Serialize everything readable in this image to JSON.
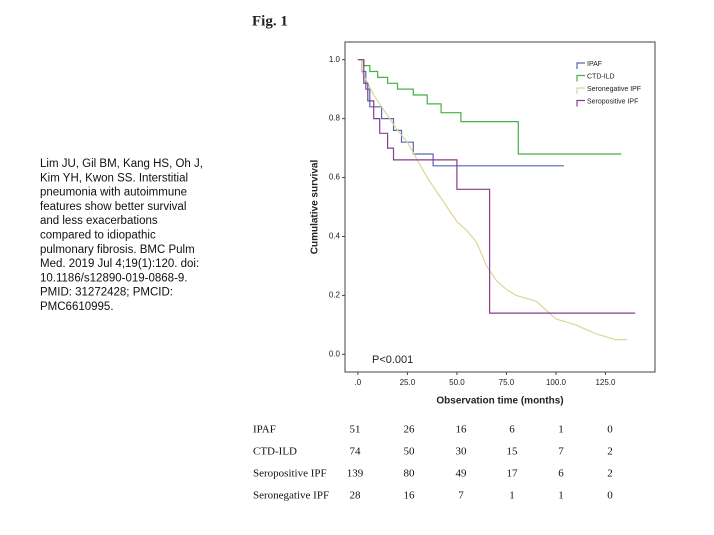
{
  "figure_label": "Fig. 1",
  "citation": [
    "Lim JU, Gil BM, Kang HS, Oh J,",
    "Kim YH, Kwon SS. Interstitial",
    "pneumonia with autoimmune",
    "features show better survival",
    "and less exacerbations",
    "compared to idiopathic",
    "pulmonary fibrosis. BMC Pulm",
    "Med. 2019 Jul 4;19(1):120. doi:",
    "10.1186/s12890-019-0868-9.",
    "PMID: 31272428; PMCID:",
    "PMC6610995."
  ],
  "chart_data": {
    "type": "line",
    "xlabel": "Observation time (months)",
    "ylabel": "Cumulative survival",
    "annotation": "P<0.001",
    "xlim": [
      -6.5,
      150
    ],
    "ylim": [
      -0.06,
      1.06
    ],
    "xticks": [
      {
        "value": 0,
        "label": ".0"
      },
      {
        "value": 25,
        "label": "25.0"
      },
      {
        "value": 50,
        "label": "50.0"
      },
      {
        "value": 75,
        "label": "75.0"
      },
      {
        "value": 100,
        "label": "100.0"
      },
      {
        "value": 125,
        "label": "125.0"
      }
    ],
    "yticks": [
      {
        "value": 0,
        "label": "0.0"
      },
      0.2,
      0.4,
      0.6,
      0.8,
      {
        "value": 1,
        "label": "1.0"
      }
    ],
    "series": [
      {
        "name": "IPAF",
        "color": "#5468b0",
        "x": [
          0,
          2,
          2,
          4,
          4,
          6,
          6,
          12,
          12,
          18,
          18,
          22,
          22,
          28,
          28,
          38,
          38,
          104
        ],
        "values": [
          1,
          1,
          0.96,
          0.96,
          0.9,
          0.9,
          0.84,
          0.84,
          0.8,
          0.8,
          0.76,
          0.76,
          0.72,
          0.72,
          0.68,
          0.68,
          0.64,
          0.64
        ]
      },
      {
        "name": "CTD-ILD",
        "color": "#45b045",
        "x": [
          0,
          3,
          3,
          6,
          6,
          10,
          10,
          15,
          15,
          20,
          20,
          28,
          28,
          35,
          35,
          42,
          42,
          52,
          52,
          81,
          81,
          133
        ],
        "values": [
          1,
          1,
          0.98,
          0.98,
          0.96,
          0.96,
          0.94,
          0.94,
          0.92,
          0.92,
          0.9,
          0.9,
          0.88,
          0.88,
          0.85,
          0.85,
          0.82,
          0.82,
          0.79,
          0.79,
          0.68,
          0.68
        ]
      },
      {
        "name": "Seronegative IPF",
        "color": "#ddd59a",
        "x": [
          0,
          2,
          2,
          5,
          8,
          12,
          16,
          20,
          25,
          30,
          35,
          40,
          45,
          50,
          55,
          60,
          65,
          70,
          75,
          80,
          90,
          100,
          110,
          120,
          130,
          136
        ],
        "values": [
          1,
          1,
          0.96,
          0.92,
          0.88,
          0.84,
          0.8,
          0.76,
          0.72,
          0.66,
          0.6,
          0.55,
          0.5,
          0.45,
          0.42,
          0.38,
          0.3,
          0.25,
          0.22,
          0.2,
          0.18,
          0.12,
          0.1,
          0.07,
          0.05,
          0.05
        ]
      },
      {
        "name": "Seropositive IPF",
        "color": "#8a3c8c",
        "x": [
          0,
          3,
          3,
          5,
          5,
          8,
          8,
          11,
          11,
          15,
          15,
          18,
          18,
          50,
          50,
          66.5,
          66.5,
          140
        ],
        "values": [
          1,
          1,
          0.92,
          0.92,
          0.86,
          0.86,
          0.8,
          0.8,
          0.75,
          0.75,
          0.7,
          0.7,
          0.66,
          0.66,
          0.56,
          0.56,
          0.14,
          0.14
        ]
      }
    ]
  },
  "risk_table": {
    "rows": [
      {
        "label": "IPAF",
        "counts": [
          51,
          26,
          16,
          6,
          1,
          0
        ]
      },
      {
        "label": "CTD-ILD",
        "counts": [
          74,
          50,
          30,
          15,
          7,
          2
        ]
      },
      {
        "label": "Seropositive IPF",
        "counts": [
          139,
          80,
          49,
          17,
          6,
          2
        ]
      },
      {
        "label": "Seronegative IPF",
        "counts": [
          28,
          16,
          7,
          1,
          1,
          0
        ]
      }
    ]
  }
}
